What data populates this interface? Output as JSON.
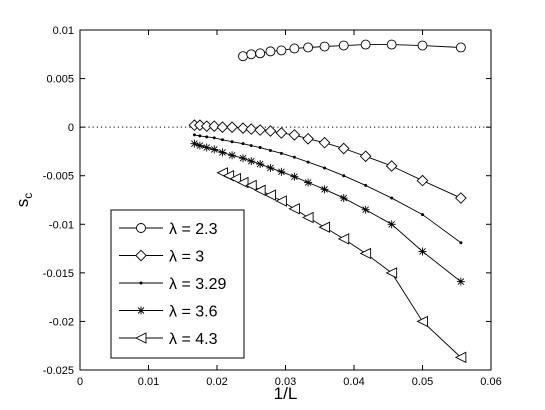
{
  "chart_data": {
    "type": "line",
    "xlabel": "1/L",
    "ylabel": "s",
    "ylabel_subscript": "c",
    "xlim": [
      0,
      0.06
    ],
    "ylim": [
      -0.025,
      0.01
    ],
    "x_ticks": [
      0,
      0.01,
      0.02,
      0.03,
      0.04,
      0.05,
      0.06
    ],
    "x_tick_labels": [
      "0",
      "0.01",
      "0.02",
      "0.03",
      "0.04",
      "0.05",
      "0.06"
    ],
    "y_ticks": [
      0.01,
      0.005,
      0,
      -0.005,
      -0.01,
      -0.015,
      -0.02,
      -0.025
    ],
    "y_tick_labels": [
      "0.01",
      "0.005",
      "0",
      "-0.005",
      "-0.01",
      "-0.015",
      "-0.02",
      "-0.025"
    ],
    "grid": false,
    "reference_line": {
      "y": 0,
      "style": "dotted"
    },
    "legend_location": "lower-left",
    "series": [
      {
        "name": "λ = 2.3",
        "marker": "circle",
        "x": [
          0.0238,
          0.025,
          0.0263,
          0.0278,
          0.0294,
          0.0313,
          0.0333,
          0.0357,
          0.0385,
          0.0417,
          0.0455,
          0.05,
          0.0556
        ],
        "y": [
          0.0073,
          0.0075,
          0.0076,
          0.0078,
          0.0079,
          0.0081,
          0.0082,
          0.0083,
          0.0084,
          0.0085,
          0.0085,
          0.0084,
          0.0082
        ]
      },
      {
        "name": "λ = 3",
        "marker": "diamond",
        "x": [
          0.0167,
          0.0175,
          0.0185,
          0.0196,
          0.0208,
          0.0222,
          0.0238,
          0.025,
          0.0263,
          0.0278,
          0.0294,
          0.0313,
          0.0333,
          0.0357,
          0.0385,
          0.0417,
          0.0455,
          0.05,
          0.0556
        ],
        "y": [
          0.0002,
          0.0002,
          0.0001,
          0.0001,
          0.0,
          0.0,
          -0.0001,
          -0.0002,
          -0.0003,
          -0.0004,
          -0.0006,
          -0.0008,
          -0.0012,
          -0.0016,
          -0.0022,
          -0.003,
          -0.004,
          -0.0055,
          -0.0073
        ]
      },
      {
        "name": "λ = 3.29",
        "marker": "dot",
        "x": [
          0.0167,
          0.0175,
          0.0185,
          0.0196,
          0.0208,
          0.0222,
          0.0238,
          0.025,
          0.0263,
          0.0278,
          0.0294,
          0.0313,
          0.0333,
          0.0357,
          0.0385,
          0.0417,
          0.0455,
          0.05,
          0.0556
        ],
        "y": [
          -0.0008,
          -0.0009,
          -0.001,
          -0.0011,
          -0.0013,
          -0.0015,
          -0.0017,
          -0.0019,
          -0.0021,
          -0.0024,
          -0.0027,
          -0.0031,
          -0.0036,
          -0.0042,
          -0.005,
          -0.006,
          -0.0073,
          -0.009,
          -0.0119
        ]
      },
      {
        "name": "λ = 3.6",
        "marker": "asterisk",
        "x": [
          0.0167,
          0.0175,
          0.0185,
          0.0196,
          0.0208,
          0.0222,
          0.0238,
          0.025,
          0.0263,
          0.0278,
          0.0294,
          0.0313,
          0.0333,
          0.0357,
          0.0385,
          0.0417,
          0.0455,
          0.05,
          0.0556
        ],
        "y": [
          -0.0017,
          -0.0019,
          -0.0021,
          -0.0023,
          -0.0026,
          -0.0029,
          -0.0032,
          -0.0035,
          -0.0038,
          -0.0042,
          -0.0046,
          -0.0051,
          -0.0057,
          -0.0064,
          -0.0073,
          -0.0085,
          -0.01,
          -0.0128,
          -0.0159
        ]
      },
      {
        "name": "λ = 4.3",
        "marker": "triangle-left",
        "x": [
          0.0208,
          0.0217,
          0.0227,
          0.0238,
          0.025,
          0.0263,
          0.0278,
          0.0294,
          0.0313,
          0.0333,
          0.0357,
          0.0385,
          0.0417,
          0.0455,
          0.05,
          0.0556
        ],
        "y": [
          -0.0047,
          -0.005,
          -0.0053,
          -0.0057,
          -0.006,
          -0.0065,
          -0.007,
          -0.0076,
          -0.0084,
          -0.0093,
          -0.0103,
          -0.0115,
          -0.013,
          -0.015,
          -0.02,
          -0.0237
        ]
      }
    ]
  }
}
